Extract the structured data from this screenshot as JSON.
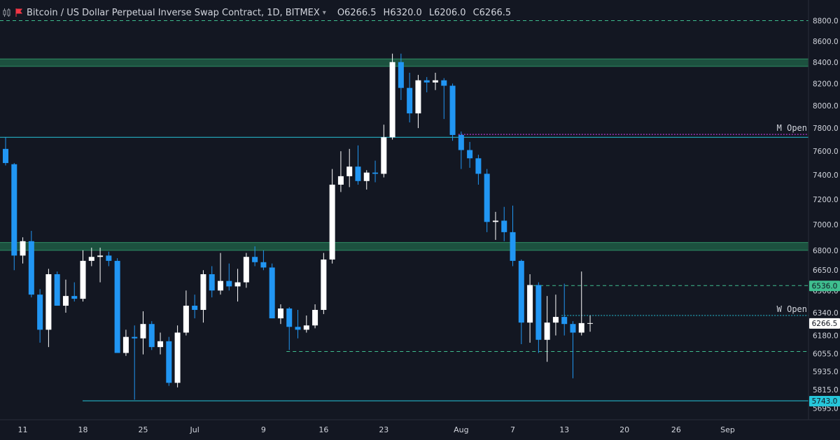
{
  "header": {
    "title": "Bitcoin / US Dollar Perpetual Inverse Swap Contract, 1D, BITMEX",
    "ohlc": [
      {
        "k": "O",
        "v": "6266.5"
      },
      {
        "k": "H",
        "v": "6320.0"
      },
      {
        "k": "L",
        "v": "6206.0"
      },
      {
        "k": "C",
        "v": "6266.5"
      }
    ]
  },
  "colors": {
    "background": "#131722",
    "up": "#ffffff",
    "down": "#2196f3",
    "zone": "#1f5c44",
    "cyan_line": "#26c6da",
    "green_dashed": "#3fbf8f",
    "magenta": "#e040fb",
    "axis_text": "#d1d4dc"
  },
  "chart_data": {
    "type": "candlestick",
    "y_scale": "log",
    "ylim": [
      5640,
      8950
    ],
    "y_ticks": [
      "8800.0",
      "8600.0",
      "8400.0",
      "8200.0",
      "8000.0",
      "7800.0",
      "7600.0",
      "7400.0",
      "7200.0",
      "7000.0",
      "6800.0",
      "6650.0",
      "6500.0",
      "6340.0",
      "6180.0",
      "6055.0",
      "5935.0",
      "5815.0",
      "5695.0"
    ],
    "x_ticks": [
      {
        "label": "11",
        "date": "2018-06-11"
      },
      {
        "label": "18",
        "date": "2018-06-18"
      },
      {
        "label": "25",
        "date": "2018-06-25"
      },
      {
        "label": "Jul",
        "date": "2018-07-01"
      },
      {
        "label": "9",
        "date": "2018-07-09"
      },
      {
        "label": "16",
        "date": "2018-07-16"
      },
      {
        "label": "23",
        "date": "2018-07-23"
      },
      {
        "label": "Aug",
        "date": "2018-08-01"
      },
      {
        "label": "7",
        "date": "2018-08-07"
      },
      {
        "label": "13",
        "date": "2018-08-13"
      },
      {
        "label": "20",
        "date": "2018-08-20"
      },
      {
        "label": "26",
        "date": "2018-08-26"
      },
      {
        "label": "Sep",
        "date": "2018-09-01"
      }
    ],
    "candles": [
      {
        "d": "2018-06-09",
        "o": 7620,
        "h": 7720,
        "l": 7480,
        "c": 7500
      },
      {
        "d": "2018-06-10",
        "o": 7490,
        "h": 7500,
        "l": 6650,
        "c": 6760
      },
      {
        "d": "2018-06-11",
        "o": 6760,
        "h": 6900,
        "l": 6700,
        "c": 6870
      },
      {
        "d": "2018-06-12",
        "o": 6870,
        "h": 6950,
        "l": 6450,
        "c": 6470
      },
      {
        "d": "2018-06-13",
        "o": 6470,
        "h": 6510,
        "l": 6130,
        "c": 6220
      },
      {
        "d": "2018-06-14",
        "o": 6220,
        "h": 6660,
        "l": 6100,
        "c": 6620
      },
      {
        "d": "2018-06-15",
        "o": 6620,
        "h": 6640,
        "l": 6400,
        "c": 6390
      },
      {
        "d": "2018-06-16",
        "o": 6390,
        "h": 6580,
        "l": 6340,
        "c": 6460
      },
      {
        "d": "2018-06-17",
        "o": 6460,
        "h": 6560,
        "l": 6420,
        "c": 6440
      },
      {
        "d": "2018-06-18",
        "o": 6440,
        "h": 6800,
        "l": 6420,
        "c": 6720
      },
      {
        "d": "2018-06-19",
        "o": 6720,
        "h": 6820,
        "l": 6680,
        "c": 6750
      },
      {
        "d": "2018-06-20",
        "o": 6750,
        "h": 6820,
        "l": 6560,
        "c": 6760
      },
      {
        "d": "2018-06-21",
        "o": 6760,
        "h": 6790,
        "l": 6680,
        "c": 6720
      },
      {
        "d": "2018-06-22",
        "o": 6720,
        "h": 6740,
        "l": 6060,
        "c": 6060
      },
      {
        "d": "2018-06-23",
        "o": 6060,
        "h": 6220,
        "l": 6040,
        "c": 6170
      },
      {
        "d": "2018-06-24",
        "o": 6170,
        "h": 6250,
        "l": 5750,
        "c": 6160
      },
      {
        "d": "2018-06-25",
        "o": 6160,
        "h": 6350,
        "l": 6050,
        "c": 6260
      },
      {
        "d": "2018-06-26",
        "o": 6260,
        "h": 6280,
        "l": 6080,
        "c": 6100
      },
      {
        "d": "2018-06-27",
        "o": 6100,
        "h": 6200,
        "l": 6050,
        "c": 6140
      },
      {
        "d": "2018-06-28",
        "o": 6140,
        "h": 6170,
        "l": 5840,
        "c": 5860
      },
      {
        "d": "2018-06-29",
        "o": 5860,
        "h": 6250,
        "l": 5830,
        "c": 6200
      },
      {
        "d": "2018-06-30",
        "o": 6200,
        "h": 6500,
        "l": 6180,
        "c": 6390
      },
      {
        "d": "2018-07-01",
        "o": 6390,
        "h": 6470,
        "l": 6300,
        "c": 6360
      },
      {
        "d": "2018-07-02",
        "o": 6360,
        "h": 6650,
        "l": 6270,
        "c": 6620
      },
      {
        "d": "2018-07-03",
        "o": 6620,
        "h": 6680,
        "l": 6450,
        "c": 6500
      },
      {
        "d": "2018-07-04",
        "o": 6500,
        "h": 6780,
        "l": 6470,
        "c": 6570
      },
      {
        "d": "2018-07-05",
        "o": 6570,
        "h": 6700,
        "l": 6500,
        "c": 6530
      },
      {
        "d": "2018-07-06",
        "o": 6530,
        "h": 6660,
        "l": 6420,
        "c": 6560
      },
      {
        "d": "2018-07-07",
        "o": 6560,
        "h": 6780,
        "l": 6520,
        "c": 6750
      },
      {
        "d": "2018-07-08",
        "o": 6750,
        "h": 6830,
        "l": 6680,
        "c": 6710
      },
      {
        "d": "2018-07-09",
        "o": 6710,
        "h": 6800,
        "l": 6650,
        "c": 6670
      },
      {
        "d": "2018-07-10",
        "o": 6670,
        "h": 6700,
        "l": 6300,
        "c": 6300
      },
      {
        "d": "2018-07-11",
        "o": 6300,
        "h": 6400,
        "l": 6260,
        "c": 6370
      },
      {
        "d": "2018-07-12",
        "o": 6370,
        "h": 6380,
        "l": 6080,
        "c": 6240
      },
      {
        "d": "2018-07-13",
        "o": 6240,
        "h": 6360,
        "l": 6160,
        "c": 6220
      },
      {
        "d": "2018-07-14",
        "o": 6220,
        "h": 6320,
        "l": 6200,
        "c": 6250
      },
      {
        "d": "2018-07-15",
        "o": 6250,
        "h": 6400,
        "l": 6230,
        "c": 6360
      },
      {
        "d": "2018-07-16",
        "o": 6360,
        "h": 6780,
        "l": 6330,
        "c": 6730
      },
      {
        "d": "2018-07-17",
        "o": 6730,
        "h": 7450,
        "l": 6700,
        "c": 7320
      },
      {
        "d": "2018-07-18",
        "o": 7320,
        "h": 7600,
        "l": 7260,
        "c": 7390
      },
      {
        "d": "2018-07-19",
        "o": 7390,
        "h": 7620,
        "l": 7300,
        "c": 7470
      },
      {
        "d": "2018-07-20",
        "o": 7470,
        "h": 7650,
        "l": 7320,
        "c": 7350
      },
      {
        "d": "2018-07-21",
        "o": 7350,
        "h": 7440,
        "l": 7280,
        "c": 7420
      },
      {
        "d": "2018-07-22",
        "o": 7420,
        "h": 7520,
        "l": 7340,
        "c": 7410
      },
      {
        "d": "2018-07-23",
        "o": 7410,
        "h": 7830,
        "l": 7380,
        "c": 7720
      },
      {
        "d": "2018-07-24",
        "o": 7720,
        "h": 8480,
        "l": 7700,
        "c": 8400
      },
      {
        "d": "2018-07-25",
        "o": 8400,
        "h": 8480,
        "l": 8050,
        "c": 8160
      },
      {
        "d": "2018-07-26",
        "o": 8160,
        "h": 8300,
        "l": 7850,
        "c": 7930
      },
      {
        "d": "2018-07-27",
        "o": 7930,
        "h": 8280,
        "l": 7800,
        "c": 8230
      },
      {
        "d": "2018-07-28",
        "o": 8230,
        "h": 8260,
        "l": 8120,
        "c": 8210
      },
      {
        "d": "2018-07-29",
        "o": 8210,
        "h": 8300,
        "l": 8140,
        "c": 8230
      },
      {
        "d": "2018-07-30",
        "o": 8230,
        "h": 8250,
        "l": 7880,
        "c": 8180
      },
      {
        "d": "2018-07-31",
        "o": 8180,
        "h": 8200,
        "l": 7690,
        "c": 7740
      },
      {
        "d": "2018-08-01",
        "o": 7740,
        "h": 7770,
        "l": 7450,
        "c": 7610
      },
      {
        "d": "2018-08-02",
        "o": 7610,
        "h": 7680,
        "l": 7460,
        "c": 7540
      },
      {
        "d": "2018-08-03",
        "o": 7540,
        "h": 7570,
        "l": 7320,
        "c": 7410
      },
      {
        "d": "2018-08-04",
        "o": 7410,
        "h": 7450,
        "l": 6940,
        "c": 7020
      },
      {
        "d": "2018-08-05",
        "o": 7020,
        "h": 7100,
        "l": 6880,
        "c": 7030
      },
      {
        "d": "2018-08-06",
        "o": 7030,
        "h": 7140,
        "l": 6870,
        "c": 6940
      },
      {
        "d": "2018-08-07",
        "o": 6940,
        "h": 7150,
        "l": 6680,
        "c": 6720
      },
      {
        "d": "2018-08-08",
        "o": 6720,
        "h": 6730,
        "l": 6120,
        "c": 6270
      },
      {
        "d": "2018-08-09",
        "o": 6270,
        "h": 6620,
        "l": 6130,
        "c": 6540
      },
      {
        "d": "2018-08-10",
        "o": 6540,
        "h": 6560,
        "l": 6060,
        "c": 6150
      },
      {
        "d": "2018-08-11",
        "o": 6150,
        "h": 6460,
        "l": 6000,
        "c": 6270
      },
      {
        "d": "2018-08-12",
        "o": 6270,
        "h": 6470,
        "l": 6180,
        "c": 6310
      },
      {
        "d": "2018-08-13",
        "o": 6310,
        "h": 6550,
        "l": 6180,
        "c": 6260
      },
      {
        "d": "2018-08-14",
        "o": 6260,
        "h": 6280,
        "l": 5890,
        "c": 6200
      },
      {
        "d": "2018-08-15",
        "o": 6200,
        "h": 6640,
        "l": 6180,
        "c": 6266.5
      },
      {
        "d": "2018-08-16",
        "o": 6266.5,
        "h": 6320,
        "l": 6206,
        "c": 6266.5
      }
    ],
    "levels": [
      {
        "type": "zone",
        "from": 8360,
        "to": 8430
      },
      {
        "type": "zone",
        "from": 6800,
        "to": 6860
      },
      {
        "type": "line",
        "value": 7720,
        "style": "solid",
        "color": "cyan"
      },
      {
        "type": "line",
        "value": 5743,
        "style": "solid",
        "color": "cyan",
        "price_label": "5743.0"
      },
      {
        "type": "line",
        "value": 8800,
        "style": "dashed",
        "color": "green"
      },
      {
        "type": "line",
        "value": 6536,
        "style": "dashed",
        "color": "green",
        "price_label": "6536.0",
        "from": "2018-08-09"
      },
      {
        "type": "line",
        "value": 6070,
        "style": "dashed",
        "color": "green",
        "from": "2018-07-12"
      },
      {
        "type": "line",
        "value": 6320,
        "style": "dotted",
        "color": "cyan",
        "label": "W Open",
        "from": "2018-08-13"
      },
      {
        "type": "line",
        "value": 7745,
        "style": "dotted",
        "color": "magenta",
        "label": "M Open",
        "from": "2018-08-01"
      }
    ],
    "last_price_label": "6266.5"
  }
}
